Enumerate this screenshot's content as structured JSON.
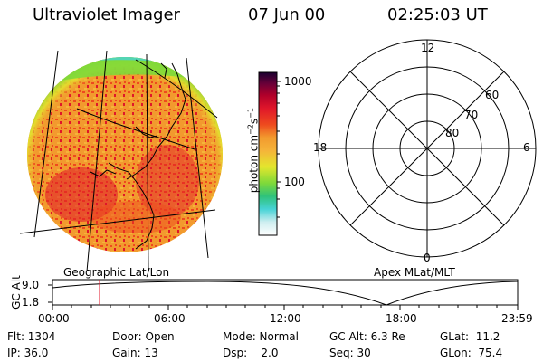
{
  "header": {
    "instrument": "Ultraviolet Imager",
    "date": "07 Jun 00",
    "time": "02:25:03 UT"
  },
  "colorbar": {
    "unit_label": "photon cm",
    "unit_sup1": "−2",
    "unit_mid": "s",
    "unit_sup2": "−1",
    "ticks": [
      "1000",
      "100"
    ]
  },
  "polar": {
    "mlt_labels": {
      "top": "12",
      "left": "18",
      "right": "6",
      "bottom": "0"
    },
    "lat_labels": [
      "60",
      "70",
      "80"
    ]
  },
  "labels": {
    "geographic": "Geographic Lat/Lon",
    "apex": "Apex MLat/MLT"
  },
  "altitude_plot": {
    "ylabel": "GC Alt",
    "yticks": [
      "9.0",
      "1.8"
    ],
    "xticks": [
      "00:00",
      "06:00",
      "12:00",
      "18:00",
      "23:59"
    ],
    "marker_time": "02:25"
  },
  "info": {
    "flt": "Flt: 1304",
    "ip": "IP: 36.0",
    "door": "Door: Open",
    "gain": "Gain: 13",
    "mode": "Mode: Normal",
    "dsp": "Dsp:    2.0",
    "gcalt": "GC Alt: 6.3 Re",
    "seq": "Seq: 30",
    "glat": "GLat:  11.2",
    "glon": "GLon:  75.4"
  }
}
